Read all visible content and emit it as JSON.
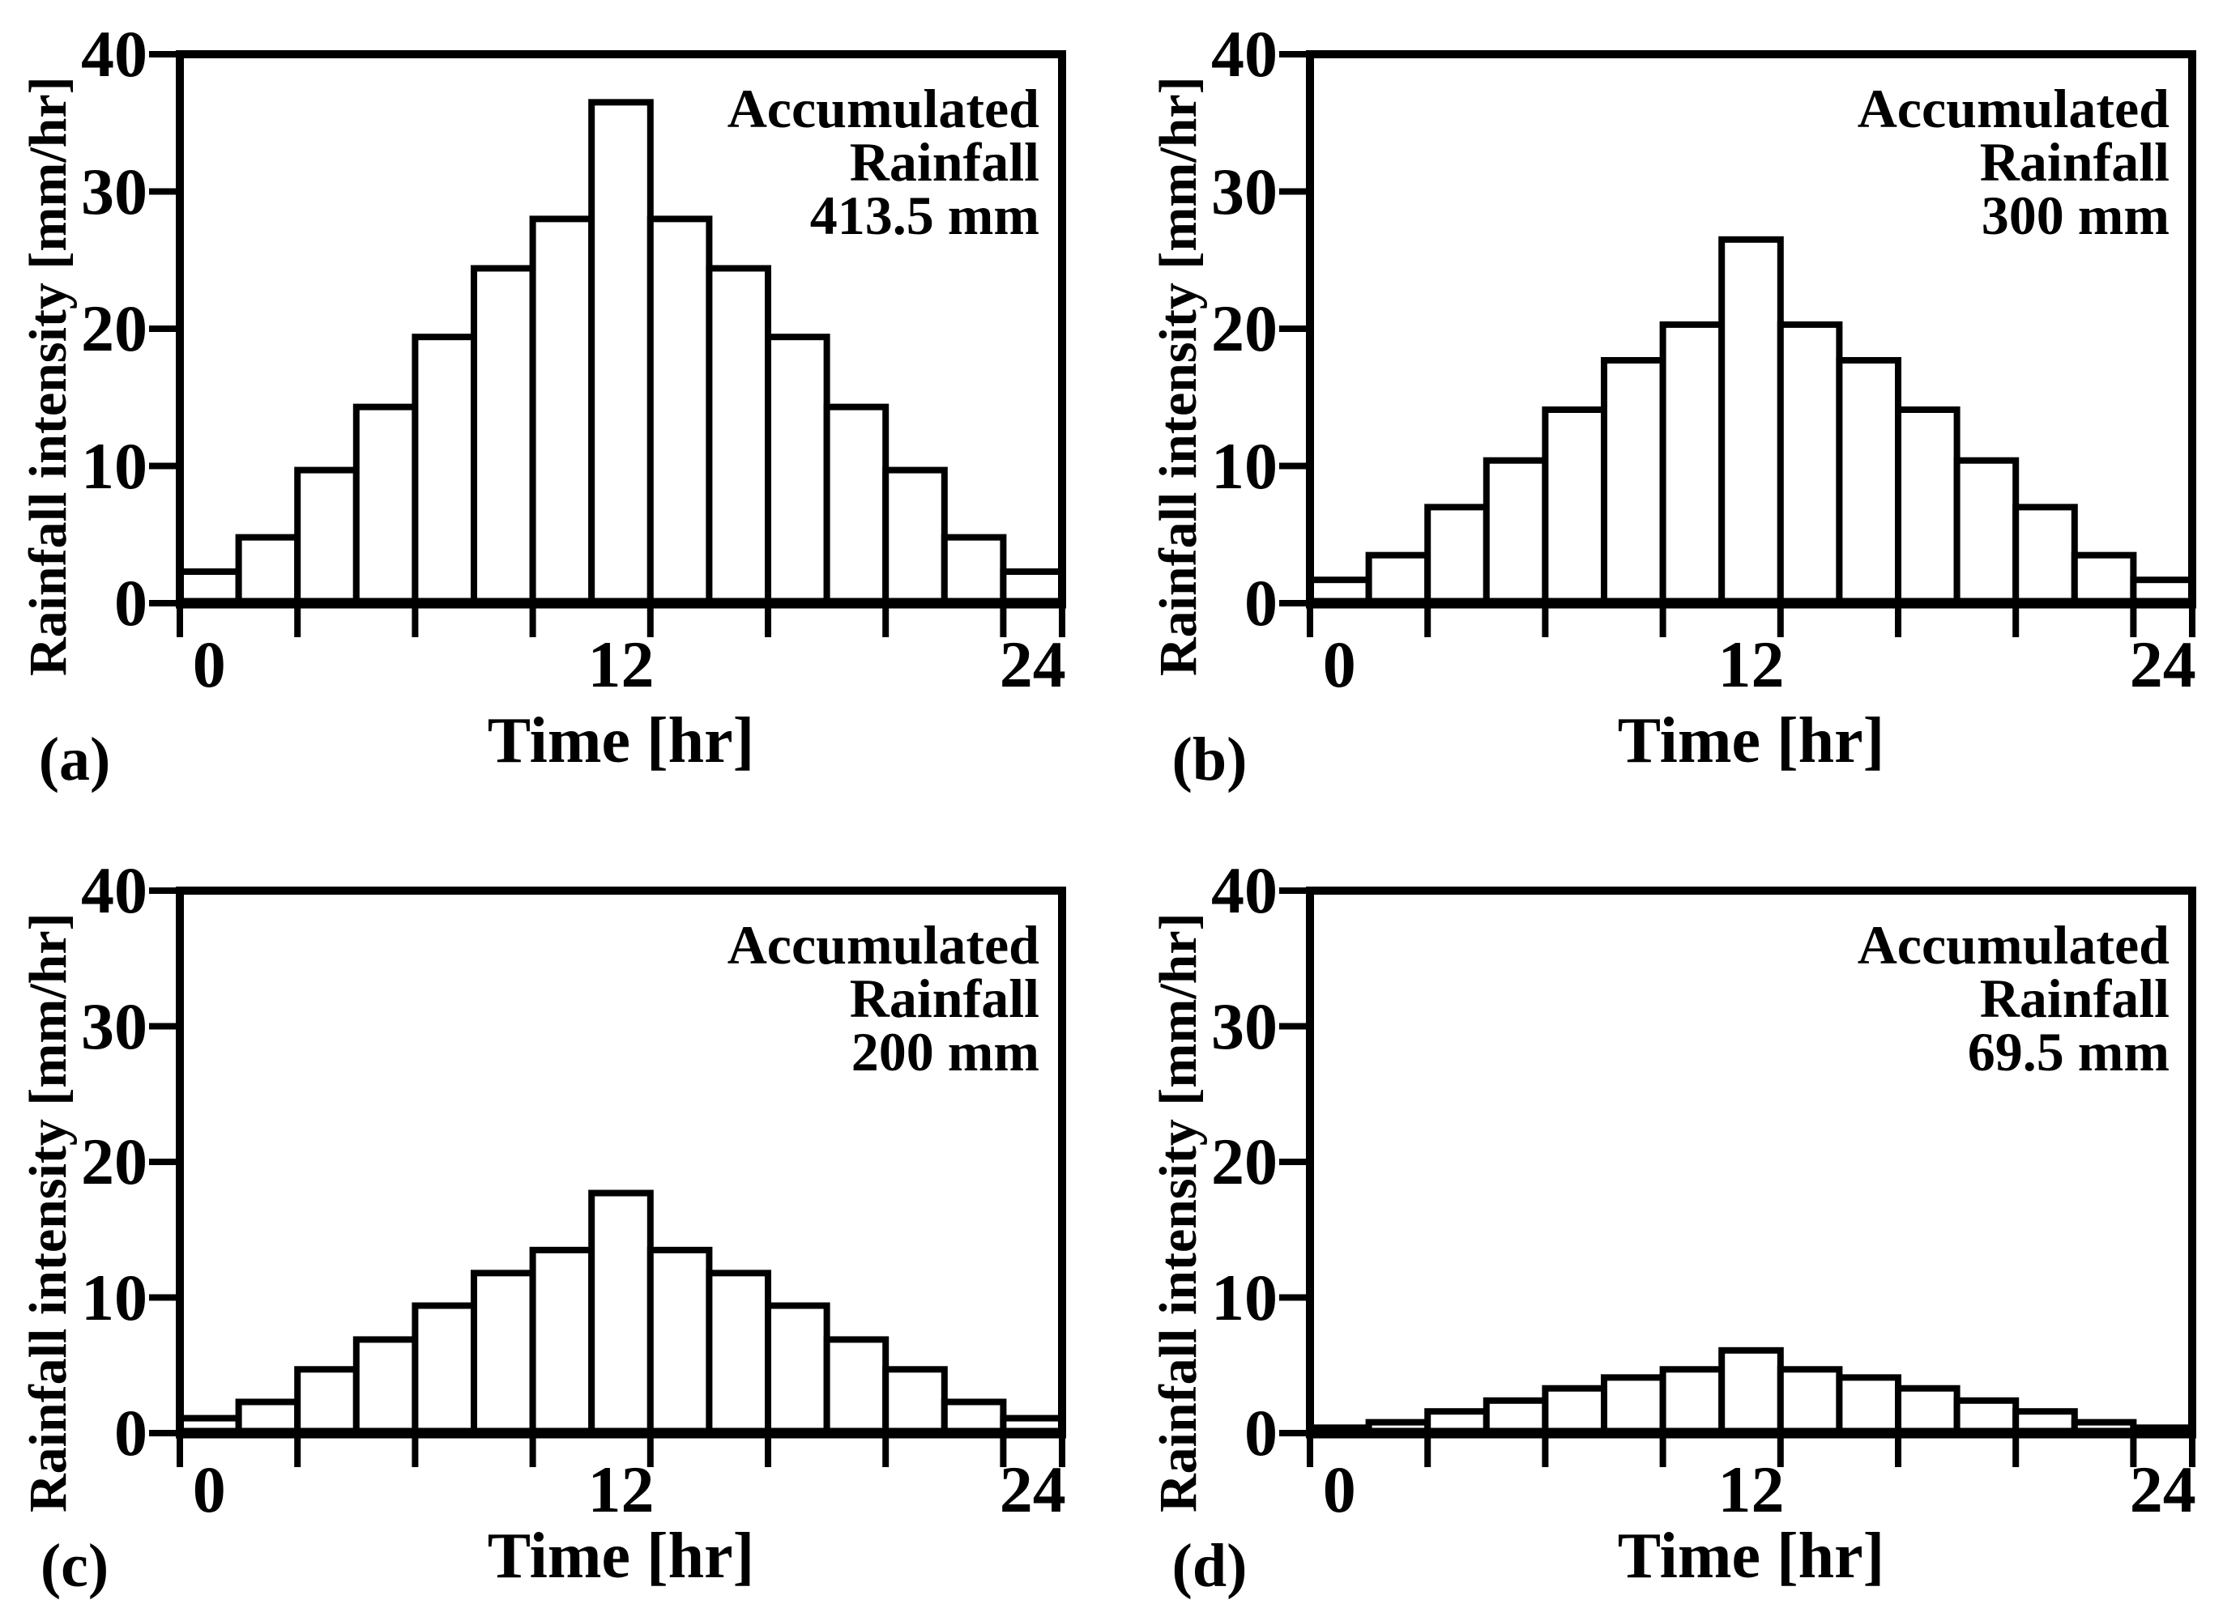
{
  "figure": {
    "background_color": "#ffffff",
    "ink_color": "#000000",
    "description_visible_text_only": true
  },
  "chart_data": [
    {
      "type": "bar",
      "panel_label": "(a)",
      "annotation_lines": [
        "Accumulated",
        "Rainfall",
        "413.5 mm"
      ],
      "accumulated_rainfall_mm": 413.5,
      "xlabel": "Time [hr]",
      "ylabel": "Rainfall intensity [mm/hr]",
      "x_tick_labels": [
        "0",
        "12",
        "24"
      ],
      "y_tick_labels": [
        "0",
        "10",
        "20",
        "30",
        "40"
      ],
      "ylim": [
        0,
        40
      ],
      "x_hours": [
        0,
        1.71,
        3.43,
        5.14,
        6.86,
        8.57,
        10.29,
        12,
        13.71,
        15.43,
        17.14,
        18.86,
        20.57,
        22.29,
        24
      ],
      "bin_width_hr": 1.71,
      "values_mm_per_hr": [
        2.3,
        4.8,
        9.7,
        14.3,
        19.4,
        24.4,
        28.0,
        36.5,
        28.0,
        24.4,
        19.4,
        14.3,
        9.7,
        4.8,
        2.3
      ],
      "grid": false,
      "bar_fill": "#ffffff",
      "bar_stroke": "#000000"
    },
    {
      "type": "bar",
      "panel_label": "(b)",
      "annotation_lines": [
        "Accumulated",
        "Rainfall",
        "300 mm"
      ],
      "accumulated_rainfall_mm": 300,
      "xlabel": "Time [hr]",
      "ylabel": "Rainfall intensity [mm/hr]",
      "x_tick_labels": [
        "0",
        "12",
        "24"
      ],
      "y_tick_labels": [
        "0",
        "10",
        "20",
        "30",
        "40"
      ],
      "ylim": [
        0,
        40
      ],
      "x_hours": [
        0,
        1.71,
        3.43,
        5.14,
        6.86,
        8.57,
        10.29,
        12,
        13.71,
        15.43,
        17.14,
        18.86,
        20.57,
        22.29,
        24
      ],
      "bin_width_hr": 1.71,
      "values_mm_per_hr": [
        1.7,
        3.5,
        7.0,
        10.4,
        14.1,
        17.7,
        20.3,
        26.5,
        20.3,
        17.7,
        14.1,
        10.4,
        7.0,
        3.5,
        1.7
      ],
      "grid": false,
      "bar_fill": "#ffffff",
      "bar_stroke": "#000000"
    },
    {
      "type": "bar",
      "panel_label": "(c)",
      "annotation_lines": [
        "Accumulated",
        "Rainfall",
        "200 mm"
      ],
      "accumulated_rainfall_mm": 200,
      "xlabel": "Time [hr]",
      "ylabel": "Rainfall intensity [mm/hr]",
      "x_tick_labels": [
        "0",
        "12",
        "24"
      ],
      "y_tick_labels": [
        "0",
        "10",
        "20",
        "30",
        "40"
      ],
      "ylim": [
        0,
        40
      ],
      "x_hours": [
        0,
        1.71,
        3.43,
        5.14,
        6.86,
        8.57,
        10.29,
        12,
        13.71,
        15.43,
        17.14,
        18.86,
        20.57,
        22.29,
        24
      ],
      "bin_width_hr": 1.71,
      "values_mm_per_hr": [
        1.1,
        2.3,
        4.7,
        6.9,
        9.4,
        11.8,
        13.5,
        17.7,
        13.5,
        11.8,
        9.4,
        6.9,
        4.7,
        2.3,
        1.1
      ],
      "grid": false,
      "bar_fill": "#ffffff",
      "bar_stroke": "#000000"
    },
    {
      "type": "bar",
      "panel_label": "(d)",
      "annotation_lines": [
        "Accumulated",
        "Rainfall",
        "69.5 mm"
      ],
      "accumulated_rainfall_mm": 69.5,
      "xlabel": "Time [hr]",
      "ylabel": "Rainfall intensity [mm/hr]",
      "x_tick_labels": [
        "0",
        "12",
        "24"
      ],
      "y_tick_labels": [
        "0",
        "10",
        "20",
        "30",
        "40"
      ],
      "ylim": [
        0,
        40
      ],
      "x_hours": [
        0,
        1.71,
        3.43,
        5.14,
        6.86,
        8.57,
        10.29,
        12,
        13.71,
        15.43,
        17.14,
        18.86,
        20.57,
        22.29,
        24
      ],
      "bin_width_hr": 1.71,
      "values_mm_per_hr": [
        0.4,
        0.8,
        1.6,
        2.4,
        3.3,
        4.1,
        4.7,
        6.1,
        4.7,
        4.1,
        3.3,
        2.4,
        1.6,
        0.8,
        0.4
      ],
      "grid": false,
      "bar_fill": "#ffffff",
      "bar_stroke": "#000000"
    }
  ]
}
